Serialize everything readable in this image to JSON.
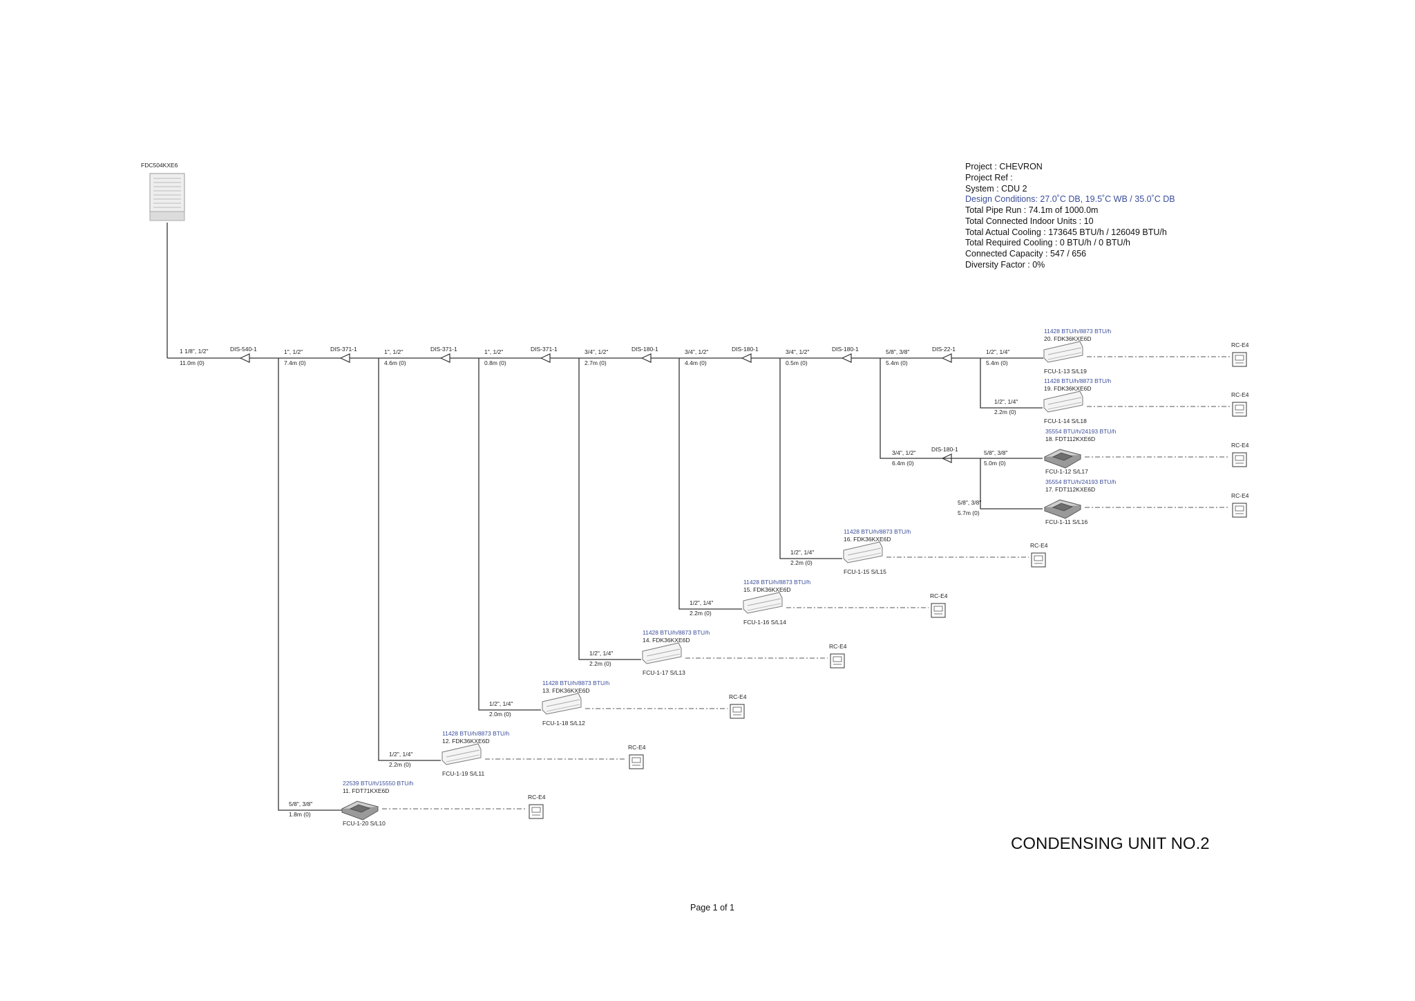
{
  "outdoor_unit": {
    "model": "FDC504KXE6"
  },
  "project_info": {
    "project": "Project : CHEVRON",
    "project_ref": "Project Ref :",
    "system": "System : CDU 2",
    "design_conditions": "Design Conditions: 27.0˚C DB, 19.5˚C WB / 35.0˚C DB",
    "total_pipe_run": "Total Pipe Run : 74.1m   of 1000.0m",
    "total_indoor_units": "Total Connected Indoor Units : 10",
    "total_actual_cooling": "Total Actual Cooling : 173645 BTU/h / 126049 BTU/h",
    "total_required_cooling": "Total Required Cooling : 0 BTU/h / 0 BTU/h",
    "connected_capacity": "Connected Capacity : 547 / 656",
    "diversity_factor": "Diversity Factor : 0%"
  },
  "main_run": {
    "first_pipe": {
      "size": "1 1/8\", 1/2\"",
      "length": "11.0m  (0)"
    },
    "branches": [
      {
        "name": "DIS-540-1",
        "pipe_after": {
          "size": "1\", 1/2\"",
          "length": "7.4m  (0)"
        }
      },
      {
        "name": "DIS-371-1",
        "pipe_after": {
          "size": "1\", 1/2\"",
          "length": "4.6m  (0)"
        }
      },
      {
        "name": "DIS-371-1",
        "pipe_after": {
          "size": "1\", 1/2\"",
          "length": "0.8m  (0)"
        }
      },
      {
        "name": "DIS-371-1",
        "pipe_after": {
          "size": "3/4\", 1/2\"",
          "length": "2.7m  (0)"
        }
      },
      {
        "name": "DIS-180-1",
        "pipe_after": {
          "size": "3/4\", 1/2\"",
          "length": "4.4m  (0)"
        }
      },
      {
        "name": "DIS-180-1",
        "pipe_after": {
          "size": "3/4\", 1/2\"",
          "length": "0.5m  (0)"
        }
      },
      {
        "name": "DIS-180-1",
        "pipe_after": {
          "size": "5/8\", 3/8\"",
          "length": "5.4m  (0)"
        }
      },
      {
        "name": "DIS-22-1",
        "pipe_after": {
          "size": "1/2\", 1/4\"",
          "length": "5.4m  (0)"
        }
      }
    ]
  },
  "sub_branch": {
    "name": "DIS-180-1",
    "pipe_in": {
      "size": "3/4\", 1/2\"",
      "length": "6.4m  (0)"
    },
    "pipe_out": {
      "size": "5/8\", 3/8\"",
      "length": "5.0m  (0)"
    }
  },
  "indoor_units": [
    {
      "capacity": "11428 BTU/h/8873 BTU/h",
      "model": "20. FDK36KXE6D",
      "tag": "FCU-1-13 S/L19",
      "type": "wall",
      "pipe": null,
      "controller": "RC-E4"
    },
    {
      "capacity": "11428 BTU/h/8873 BTU/h",
      "model": "19. FDK36KXE6D",
      "tag": "FCU-1-14 S/L18",
      "type": "wall",
      "pipe": {
        "size": "1/2\", 1/4\"",
        "length": "2.2m  (0)"
      },
      "controller": "RC-E4"
    },
    {
      "capacity": "35554 BTU/h/24193 BTU/h",
      "model": "18. FDT112KXE6D",
      "tag": "FCU-1-12 S/L17",
      "type": "cassette",
      "pipe": null,
      "controller": "RC-E4"
    },
    {
      "capacity": "35554 BTU/h/24193 BTU/h",
      "model": "17. FDT112KXE6D",
      "tag": "FCU-1-11 S/L16",
      "type": "cassette",
      "pipe": {
        "size": "5/8\", 3/8\"",
        "length": "5.7m  (0)"
      },
      "controller": "RC-E4"
    },
    {
      "capacity": "11428 BTU/h/8873 BTU/h",
      "model": "16. FDK36KXE6D",
      "tag": "FCU-1-15 S/L15",
      "type": "wall",
      "pipe": {
        "size": "1/2\", 1/4\"",
        "length": "2.2m  (0)"
      },
      "controller": "RC-E4"
    },
    {
      "capacity": "11428 BTU/h/8873 BTU/h",
      "model": "15. FDK36KXE6D",
      "tag": "FCU-1-16 S/L14",
      "type": "wall",
      "pipe": {
        "size": "1/2\", 1/4\"",
        "length": "2.2m  (0)"
      },
      "controller": "RC-E4"
    },
    {
      "capacity": "11428 BTU/h/8873 BTU/h",
      "model": "14. FDK36KXE6D",
      "tag": "FCU-1-17 S/L13",
      "type": "wall",
      "pipe": {
        "size": "1/2\", 1/4\"",
        "length": "2.2m  (0)"
      },
      "controller": "RC-E4"
    },
    {
      "capacity": "11428 BTU/h/8873 BTU/h",
      "model": "13. FDK36KXE6D",
      "tag": "FCU-1-18 S/L12",
      "type": "wall",
      "pipe": {
        "size": "1/2\", 1/4\"",
        "length": "2.0m  (0)"
      },
      "controller": "RC-E4"
    },
    {
      "capacity": "11428 BTU/h/8873 BTU/h",
      "model": "12. FDK36KXE6D",
      "tag": "FCU-1-19 S/L11",
      "type": "wall",
      "pipe": {
        "size": "1/2\", 1/4\"",
        "length": "2.2m  (0)"
      },
      "controller": "RC-E4"
    },
    {
      "capacity": "22539 BTU/h/15550 BTU/h",
      "model": "11. FDT71KXE6D",
      "tag": "FCU-1-20 S/L10",
      "type": "cassette",
      "pipe": {
        "size": "5/8\", 3/8\"",
        "length": "1.8m  (0)"
      },
      "controller": "RC-E4"
    }
  ],
  "drawing_title": "CONDENSING UNIT NO.2",
  "page_label": "Page 1 of 1"
}
